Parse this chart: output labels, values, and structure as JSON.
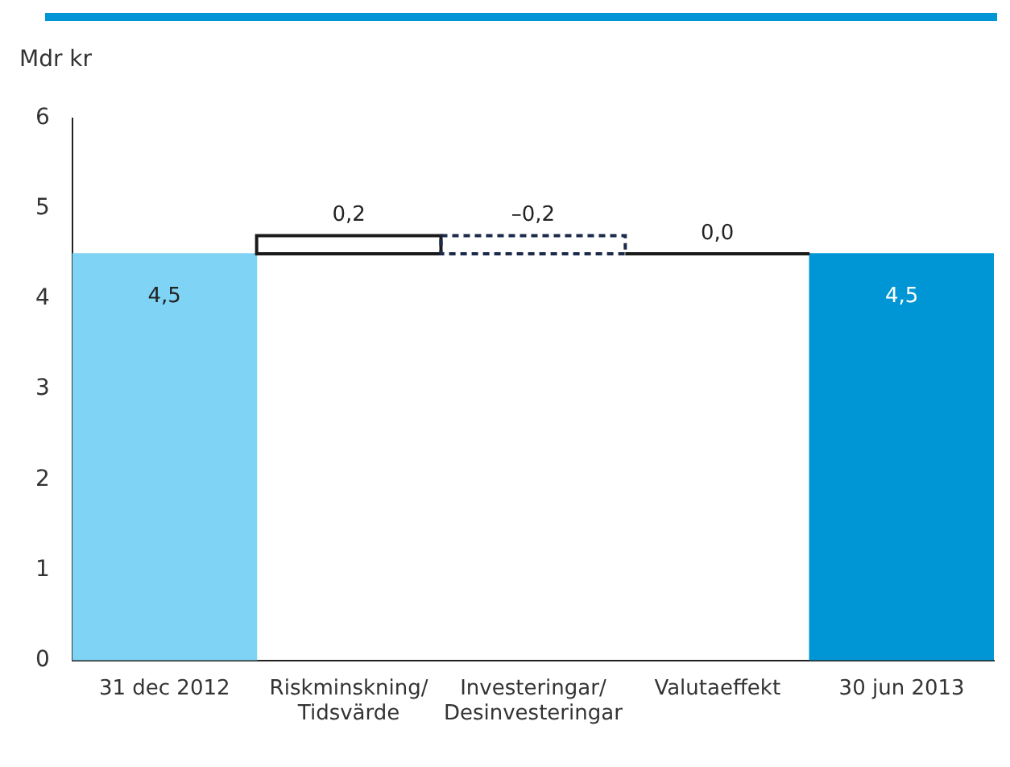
{
  "chart_data": {
    "type": "bar",
    "ylabel": "Mdr kr",
    "categories": [
      "31 dec 2012",
      "Riskminskning/\nTidsvärde",
      "Investeringar/\nDesinvesteringar",
      "Valutaeffekt",
      "30 jun 2013"
    ],
    "base": [
      0,
      4.5,
      4.7,
      4.5,
      0
    ],
    "values": [
      4.5,
      0.2,
      -0.2,
      0,
      4.5
    ],
    "colors": [
      "#7fd3f5",
      "#ffffff",
      "#ffffff",
      "#ffffff",
      "#0096d6"
    ],
    "value_labels": [
      "4,5",
      "0,2",
      "–0,2",
      "0,0",
      "4,5"
    ],
    "ylim": [
      0,
      6
    ],
    "yticks": [
      0,
      1,
      2,
      3,
      4,
      5,
      6
    ],
    "grid": false,
    "legend": false
  }
}
